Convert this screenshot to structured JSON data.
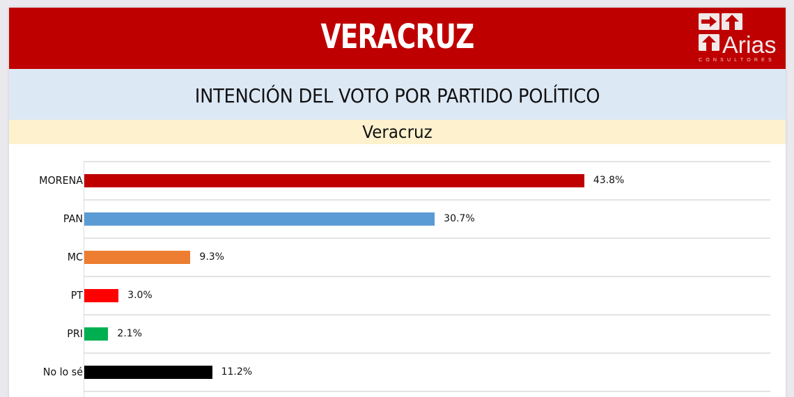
{
  "header": {
    "title": "VERACRUZ",
    "logo": {
      "word": "Arias",
      "sub": "CONSULTORES",
      "icon": "arrows-logo-icon"
    },
    "color": "#bf0000"
  },
  "section_title": "INTENCIÓN DEL VOTO POR PARTIDO POLÍTICO",
  "subtitle": "Veracruz",
  "chart_data": {
    "type": "bar",
    "orientation": "horizontal",
    "title": "INTENCIÓN DEL VOTO POR PARTIDO POLÍTICO",
    "subtitle": "Veracruz",
    "xlabel": "",
    "ylabel": "",
    "categories": [
      "MORENA",
      "PAN",
      "MC",
      "PT",
      "PRI",
      "No lo sé"
    ],
    "values": [
      43.8,
      30.7,
      9.3,
      3.0,
      2.1,
      11.2
    ],
    "value_labels": [
      "43.8%",
      "30.7%",
      "9.3%",
      "3.0%",
      "2.1%",
      "11.2%"
    ],
    "colors": [
      "#c00000",
      "#5b9bd5",
      "#ed7d31",
      "#ff0000",
      "#00b050",
      "#000000"
    ],
    "unit": "%",
    "xlim": [
      0,
      60
    ],
    "grid": "horizontal row separators",
    "legend": "none"
  }
}
